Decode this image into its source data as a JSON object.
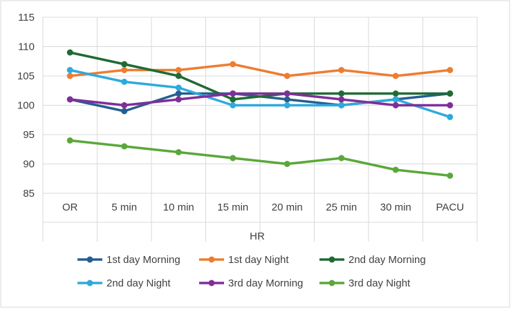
{
  "chart_data": {
    "type": "line",
    "title": "",
    "xlabel": "HR",
    "ylabel": "",
    "ylim": [
      85,
      115
    ],
    "yticks": [
      "85",
      "90",
      "95",
      "100",
      "105",
      "110",
      "115"
    ],
    "grid": true,
    "legend_position": "bottom",
    "categories": [
      "OR",
      "5 min",
      "10 min",
      "15 min",
      "20 min",
      "25 min",
      "30 min",
      "PACU"
    ],
    "series": [
      {
        "name": "1st day Morning",
        "color": "#255e91",
        "values": [
          101,
          99,
          102,
          102,
          101,
          100,
          101,
          102
        ]
      },
      {
        "name": "1st day Night",
        "color": "#ed7d31",
        "values": [
          105,
          106,
          106,
          107,
          105,
          106,
          105,
          106
        ]
      },
      {
        "name": "2nd day Morning",
        "color": "#1f6b34",
        "values": [
          109,
          107,
          105,
          101,
          102,
          102,
          102,
          102
        ]
      },
      {
        "name": "2nd day Night",
        "color": "#2eaadc",
        "values": [
          106,
          104,
          103,
          100,
          100,
          100,
          101,
          98
        ]
      },
      {
        "name": "3rd day Morning",
        "color": "#7f2f99",
        "values": [
          101,
          100,
          101,
          102,
          102,
          101,
          100,
          100
        ]
      },
      {
        "name": "3rd day Night",
        "color": "#5aa83a",
        "values": [
          94,
          93,
          92,
          91,
          90,
          91,
          89,
          88
        ]
      }
    ]
  }
}
